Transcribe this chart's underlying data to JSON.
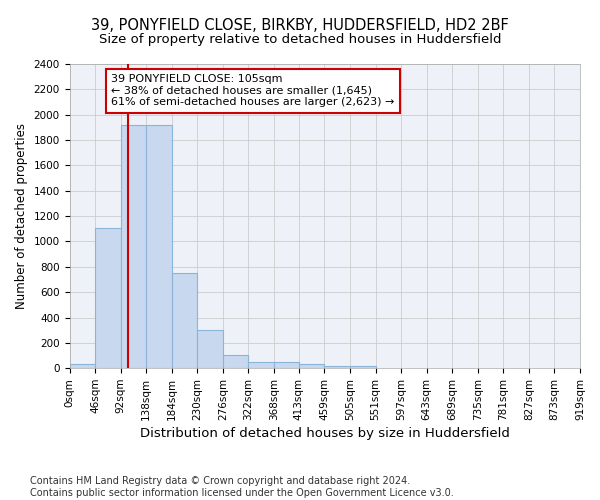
{
  "title_line1": "39, PONYFIELD CLOSE, BIRKBY, HUDDERSFIELD, HD2 2BF",
  "title_line2": "Size of property relative to detached houses in Huddersfield",
  "xlabel": "Distribution of detached houses by size in Huddersfield",
  "ylabel": "Number of detached properties",
  "bar_left_edges": [
    0,
    46,
    92,
    138,
    184,
    230,
    276,
    322,
    368,
    413,
    459,
    505
  ],
  "bar_heights": [
    35,
    1110,
    1920,
    1920,
    750,
    300,
    105,
    50,
    50,
    30,
    20,
    15
  ],
  "bin_width": 46,
  "bar_facecolor": "#c8d8ef",
  "bar_edgecolor": "#8ab4d8",
  "property_size": 105,
  "vline_color": "#cc0000",
  "annotation_text": "39 PONYFIELD CLOSE: 105sqm\n← 38% of detached houses are smaller (1,645)\n61% of semi-detached houses are larger (2,623) →",
  "annotation_box_edgecolor": "#cc0000",
  "annotation_box_facecolor": "white",
  "ylim": [
    0,
    2400
  ],
  "yticks": [
    0,
    200,
    400,
    600,
    800,
    1000,
    1200,
    1400,
    1600,
    1800,
    2000,
    2200,
    2400
  ],
  "xtick_labels": [
    "0sqm",
    "46sqm",
    "92sqm",
    "138sqm",
    "184sqm",
    "230sqm",
    "276sqm",
    "322sqm",
    "368sqm",
    "413sqm",
    "459sqm",
    "505sqm",
    "551sqm",
    "597sqm",
    "643sqm",
    "689sqm",
    "735sqm",
    "781sqm",
    "827sqm",
    "873sqm",
    "919sqm"
  ],
  "xtick_positions": [
    0,
    46,
    92,
    138,
    184,
    230,
    276,
    322,
    368,
    413,
    459,
    505,
    551,
    597,
    643,
    689,
    735,
    781,
    827,
    873,
    919
  ],
  "xlim_max": 919,
  "footnote": "Contains HM Land Registry data © Crown copyright and database right 2024.\nContains public sector information licensed under the Open Government Licence v3.0.",
  "grid_color": "#cccccc",
  "bg_color": "#eef2f8",
  "title_fontsize": 10.5,
  "subtitle_fontsize": 9.5,
  "xlabel_fontsize": 9.5,
  "ylabel_fontsize": 8.5,
  "tick_fontsize": 7.5,
  "annotation_fontsize": 8,
  "footnote_fontsize": 7
}
